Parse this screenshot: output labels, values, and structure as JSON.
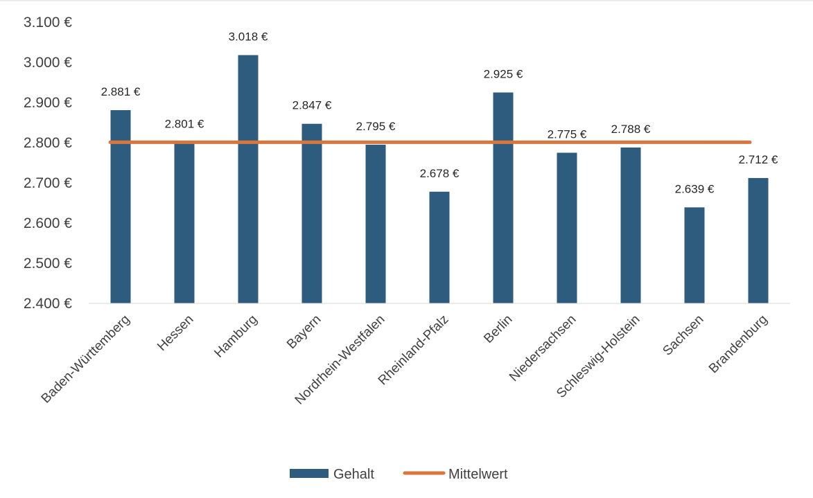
{
  "chart_data": {
    "type": "bar",
    "categories": [
      "Baden-Württemberg",
      "Hessen",
      "Hamburg",
      "Bayern",
      "Nordrhein-Westfalen",
      "Rheinland-Pfalz",
      "Berlin",
      "Niedersachsen",
      "Schleswig-Holstein",
      "Sachsen",
      "Brandenburg"
    ],
    "series": [
      {
        "name": "Gehalt",
        "type": "bar",
        "color": "#2E5C7E",
        "values": [
          2881,
          2801,
          3018,
          2847,
          2795,
          2678,
          2925,
          2775,
          2788,
          2639,
          2712
        ],
        "data_labels": [
          "2.881 €",
          "2.801 €",
          "3.018 €",
          "2.847 €",
          "2.795 €",
          "2.678 €",
          "2.925 €",
          "2.775 €",
          "2.788 €",
          "2.639 €",
          "2.712 €"
        ]
      },
      {
        "name": "Mittelwert",
        "type": "line",
        "color": "#D8773D",
        "value": 2801
      }
    ],
    "ylim": [
      2400,
      3100
    ],
    "yticks": [
      2400,
      2500,
      2600,
      2700,
      2800,
      2900,
      3000,
      3100
    ],
    "ytick_labels": [
      "2.400 €",
      "2.500 €",
      "2.600 €",
      "2.700 €",
      "2.800 €",
      "2.900 €",
      "3.000 €",
      "3.100 €"
    ],
    "grid": false,
    "legend": {
      "position": "bottom",
      "items": [
        "Gehalt",
        "Mittelwert"
      ]
    },
    "title": "",
    "xlabel": "",
    "ylabel": ""
  }
}
